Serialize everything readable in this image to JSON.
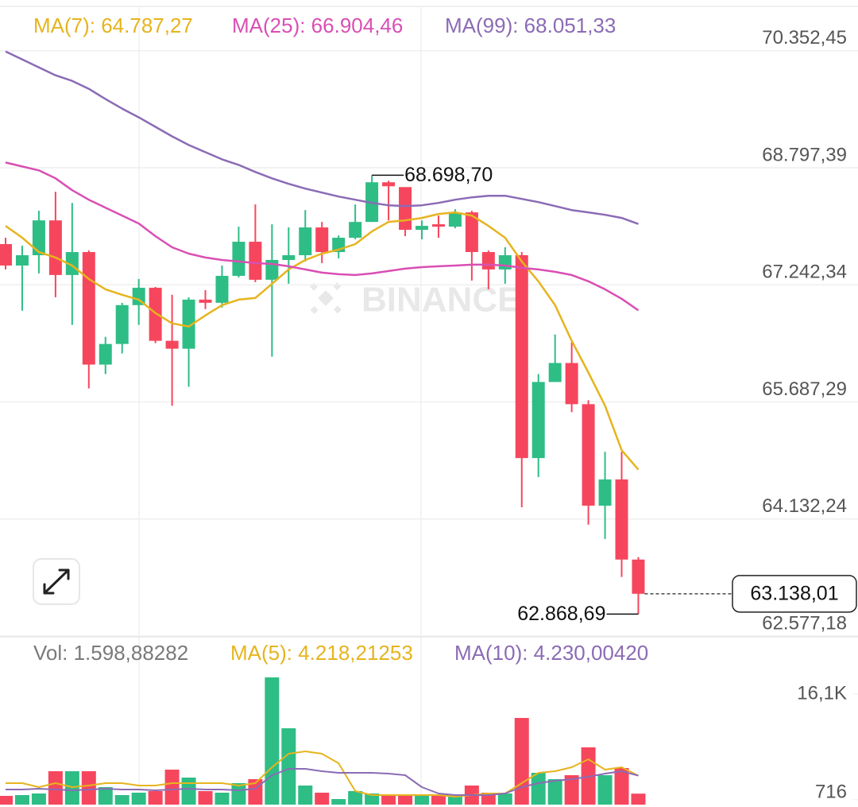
{
  "watermark": "BINANCE",
  "chart_data": [
    {
      "type": "candlestick",
      "up_color": "#2ebd85",
      "down_color": "#f6465d",
      "ylim": [
        62566,
        70942
      ],
      "yticks": [
        {
          "value": 70352.45,
          "label": "70.352,45"
        },
        {
          "value": 68797.39,
          "label": "68.797,39"
        },
        {
          "value": 67242.34,
          "label": "67.242,34"
        },
        {
          "value": 65687.29,
          "label": "65.687,29"
        },
        {
          "value": 64132.24,
          "label": "64.132,24"
        },
        {
          "value": 62577.18,
          "label": "62.577,18"
        }
      ],
      "grid": true,
      "open": [
        67784,
        67499,
        67636,
        68099,
        67373,
        67678,
        66183,
        66457,
        66973,
        67204,
        66499,
        66394,
        67046,
        67004,
        67362,
        67815,
        67310,
        67573,
        67636,
        68005,
        67678,
        67868,
        68078,
        68605,
        68541,
        67973,
        68047,
        68015,
        68205,
        67678,
        67447,
        67636,
        64941,
        65952,
        66204,
        65657,
        64309,
        64657,
        63593
      ],
      "high": [
        67868,
        67763,
        68226,
        68478,
        68331,
        67699,
        66552,
        67004,
        67320,
        67215,
        67110,
        67078,
        67173,
        67499,
        68015,
        68310,
        68047,
        68005,
        68236,
        68078,
        67899,
        68310,
        68698.7,
        68626,
        68541,
        68099,
        68163,
        68247,
        68226,
        67699,
        67742,
        67678,
        66057,
        66583,
        66478,
        65709,
        65025,
        65025,
        63625
      ],
      "low": [
        67447,
        66899,
        67394,
        67078,
        66710,
        65867,
        66057,
        66331,
        66710,
        66467,
        65636,
        65888,
        66920,
        66941,
        67341,
        67278,
        66288,
        67257,
        67552,
        67531,
        67594,
        67847,
        68078,
        68099,
        67889,
        67847,
        67868,
        67994,
        67299,
        67183,
        67257,
        64288,
        64688,
        65952,
        65551,
        64057,
        63867,
        63362,
        62868.69
      ],
      "close": [
        67499,
        67636,
        68099,
        67373,
        67678,
        66183,
        66457,
        66973,
        67204,
        66499,
        66394,
        67046,
        67004,
        67362,
        67815,
        67310,
        67573,
        67636,
        68005,
        67678,
        67868,
        68078,
        68605,
        68552,
        67973,
        68026,
        68015,
        68205,
        67678,
        67447,
        67636,
        64941,
        65952,
        66204,
        65657,
        64309,
        64657,
        63593,
        63138.01
      ],
      "high_label": "68.698,70",
      "low_label": "62.868,69",
      "last_label": "63.138,01",
      "ma": [
        {
          "name": "MA(7): 64.787,27",
          "color": "#e6b41e",
          "values": [
            68026,
            67868,
            67678,
            67605,
            67499,
            67320,
            67183,
            67110,
            67046,
            66868,
            66731,
            66689,
            66836,
            66973,
            67046,
            67068,
            67257,
            67447,
            67573,
            67657,
            67710,
            67784,
            67952,
            68078,
            68099,
            68131,
            68184,
            68205,
            68163,
            68026,
            67868,
            67552,
            67289,
            66973,
            66499,
            66078,
            65636,
            65046,
            64787.27
          ]
        },
        {
          "name": "MA(25): 66.904,46",
          "color": "#d94fb4",
          "values": [
            68868,
            68815,
            68763,
            68657,
            68500,
            68373,
            68268,
            68163,
            68057,
            67889,
            67742,
            67657,
            67605,
            67573,
            67552,
            67531,
            67520,
            67489,
            67447,
            67405,
            67384,
            67373,
            67394,
            67426,
            67457,
            67478,
            67489,
            67499,
            67510,
            67510,
            67499,
            67468,
            67447,
            67415,
            67373,
            67289,
            67183,
            67057,
            66904.46
          ]
        },
        {
          "name": "MA(99): 68.051,33",
          "color": "#8b6bb5",
          "values": [
            70342,
            70237,
            70131,
            70026,
            69952,
            69847,
            69710,
            69584,
            69468,
            69342,
            69215,
            69100,
            69005,
            68910,
            68836,
            68742,
            68657,
            68584,
            68521,
            68468,
            68415,
            68373,
            68331,
            68299,
            68289,
            68299,
            68331,
            68373,
            68405,
            68426,
            68426,
            68384,
            68342,
            68289,
            68236,
            68205,
            68173,
            68131,
            68051.33
          ]
        }
      ]
    },
    {
      "type": "bar",
      "title": "Vol: 1.598,88282",
      "ylim": [
        0,
        19344
      ],
      "yticks": [
        {
          "value": 16100,
          "label": "16,1K"
        },
        716
      ],
      "values": [
        1274,
        1390,
        1622,
        4865,
        4865,
        4865,
        2548,
        1390,
        1737,
        1969,
        5097,
        3938,
        1969,
        1737,
        3127,
        3707,
        18533,
        11120,
        2780,
        1737,
        811,
        1969,
        1622,
        1390,
        1390,
        1274,
        1390,
        1158,
        2780,
        1737,
        1622,
        12625,
        4633,
        3707,
        4286,
        8340,
        4286,
        5328,
        1598.88282
      ],
      "series": [
        {
          "name": "MA(5): 4.218,21253",
          "color": "#e6b41e",
          "values": [
            3127,
            3127,
            2548,
            3127,
            2548,
            2780,
            3127,
            3127,
            2780,
            2780,
            3127,
            3127,
            3127,
            3127,
            2780,
            3127,
            5444,
            7413,
            7761,
            7413,
            6023,
            1969,
            1390,
            1390,
            1390,
            1390,
            1390,
            1158,
            1390,
            1622,
            1622,
            3127,
            4633,
            4865,
            5444,
            6602,
            5097,
            5444,
            4218.21253
          ]
        },
        {
          "name": "MA(10): 4.230,00420",
          "color": "#8b6bb5",
          "values": [
            2201,
            2201,
            2317,
            2201,
            2085,
            2201,
            2317,
            2201,
            2201,
            2085,
            2201,
            2317,
            2201,
            2201,
            2085,
            2317,
            4286,
            5212,
            5212,
            4865,
            4633,
            4633,
            4633,
            4517,
            4286,
            2548,
            1622,
            1390,
            1390,
            1390,
            1622,
            2548,
            3127,
            3475,
            3707,
            4054,
            4517,
            4865,
            4230.0042
          ]
        }
      ]
    }
  ]
}
